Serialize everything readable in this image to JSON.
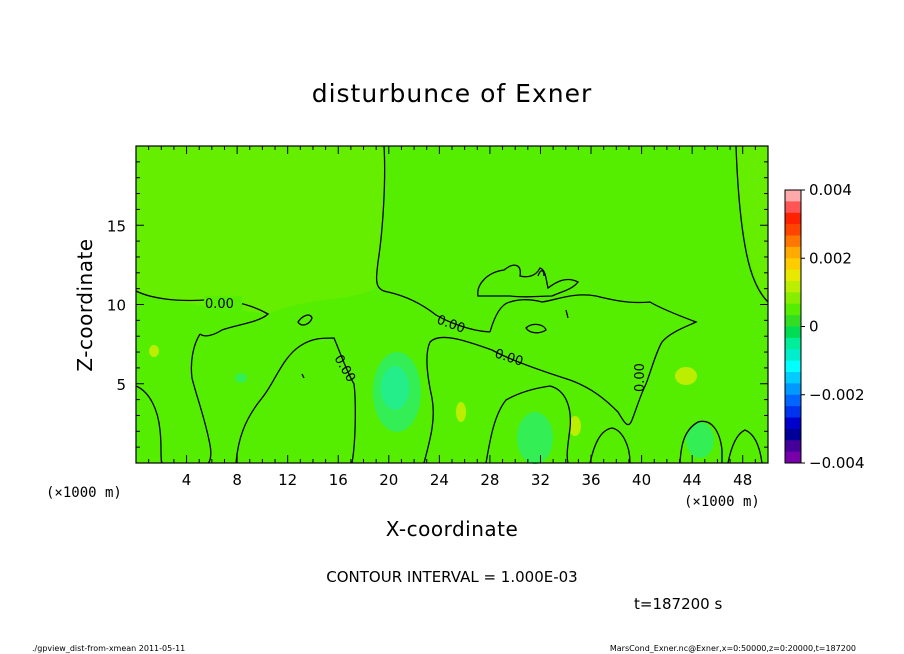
{
  "chart_data": {
    "type": "heatmap",
    "title": "disturbunce of Exner",
    "xlabel": "X-coordinate",
    "ylabel": "Z-coordinate",
    "x_unit": "(×1000 m)",
    "z_unit": "(×1000 m)",
    "xlim": [
      0,
      50
    ],
    "ylim": [
      0,
      20
    ],
    "x_ticks": [
      4,
      8,
      12,
      16,
      20,
      24,
      28,
      32,
      36,
      40,
      44,
      48
    ],
    "y_ticks": [
      5,
      10,
      15
    ],
    "background_value": 0,
    "colorbar": {
      "range": [
        -0.004,
        0.004
      ],
      "tick_values": [
        0.004,
        0.002,
        0,
        -0.002,
        -0.004
      ],
      "tick_labels": [
        "0.004",
        "0.002",
        "0",
        "−0.002",
        "−0.004"
      ],
      "colors": [
        "#ffaaaa",
        "#ff5555",
        "#ff2200",
        "#ff4400",
        "#ff7700",
        "#ffaa00",
        "#ffcc00",
        "#e8e800",
        "#bbee00",
        "#88ee00",
        "#55ee00",
        "#33dd22",
        "#00dd55",
        "#00ee99",
        "#00eecc",
        "#00ffff",
        "#00ccff",
        "#0099ff",
        "#0066ff",
        "#0033ee",
        "#0000cc",
        "#000099",
        "#440099",
        "#7700aa"
      ]
    },
    "contour_interval": "CONTOUR INTERVAL = 1.000E-03",
    "contour_labels": [
      "0.00",
      "0.00",
      "0.00",
      "0.00",
      "0.00"
    ],
    "time_label": "t=187200 s"
  },
  "footer": {
    "left": "./gpview_dist-from-xmean  2011-05-11",
    "right": "MarsCond_Exner.nc@Exner,x=0:50000,z=0:20000,t=187200"
  }
}
